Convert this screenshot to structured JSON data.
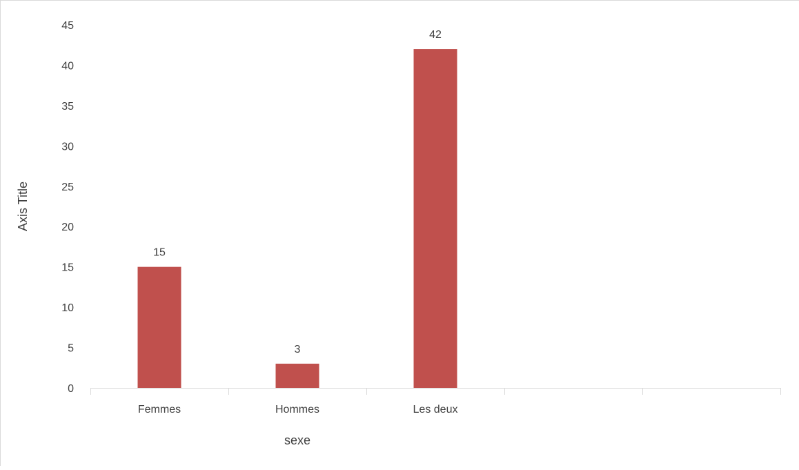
{
  "chart_data": {
    "type": "bar",
    "categories": [
      "Femmes",
      "Hommes",
      "Les deux",
      "",
      ""
    ],
    "series": [
      {
        "values": [
          15,
          3,
          42,
          null,
          null
        ],
        "data_labels": [
          "15",
          "3",
          "42",
          "",
          ""
        ]
      }
    ],
    "title": "",
    "xlabel": "sexe",
    "ylabel": "Axis Title",
    "ylim": [
      0,
      45
    ],
    "yticks": [
      0,
      5,
      10,
      15,
      20,
      25,
      30,
      35,
      40,
      45
    ],
    "ytick_labels": [
      "0",
      "5",
      "10",
      "15",
      "20",
      "25",
      "30",
      "35",
      "40",
      "45"
    ],
    "grid": false,
    "legend": "none",
    "bar_color": "#c0504d",
    "axis_color": "#d9d9d9",
    "text_color": "#404040"
  }
}
